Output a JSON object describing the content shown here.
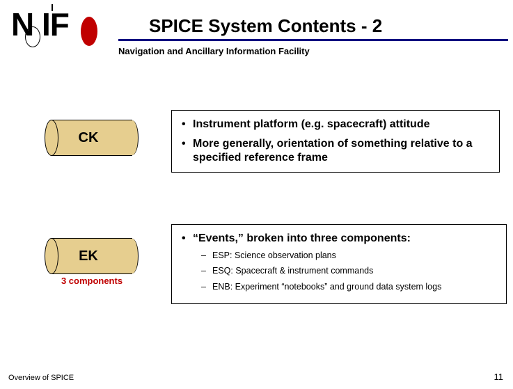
{
  "logo": {
    "text": "N IF"
  },
  "title": "SPICE System Contents - 2",
  "subtitle": "Navigation and Ancillary Information Facility",
  "kernels": {
    "ck": {
      "label": "CK",
      "bullets": [
        "Instrument platform (e.g. spacecraft) attitude",
        "More generally, orientation of something relative to a specified reference frame"
      ]
    },
    "ek": {
      "label": "EK",
      "sublabel": "3 components",
      "header": "“Events,” broken into three components:",
      "items": [
        "ESP:  Science observation plans",
        "ESQ:  Spacecraft & instrument commands",
        "ENB:  Experiment “notebooks” and ground data system logs"
      ]
    }
  },
  "footer": {
    "left": "Overview of SPICE",
    "page": "11"
  },
  "colors": {
    "accent_red": "#c00000",
    "underline": "#000080",
    "kernel_fill": "#e6ce8f",
    "text": "#000000",
    "background": "#ffffff"
  }
}
